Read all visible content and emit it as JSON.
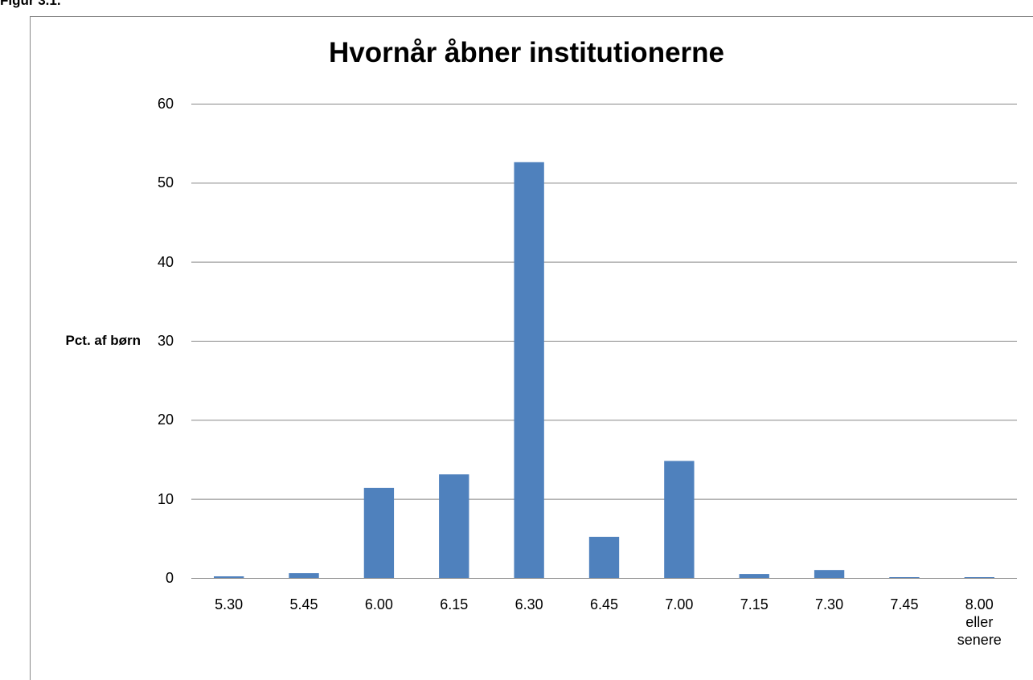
{
  "figure_label": "Figur 3.1.",
  "chart_data": {
    "type": "bar",
    "title": "Hvornår åbner institutionerne",
    "ylabel": "Pct. af børn",
    "categories": [
      "5.30",
      "5.45",
      "6.00",
      "6.15",
      "6.30",
      "6.45",
      "7.00",
      "7.15",
      "7.30",
      "7.45",
      "8.00 eller senere"
    ],
    "values": [
      0.2,
      0.6,
      11.4,
      13.1,
      52.6,
      5.2,
      14.8,
      0.5,
      1.0,
      0.1,
      0.1
    ],
    "color": "#4f81bd",
    "ylim": [
      0,
      60
    ],
    "yticks": [
      0,
      10,
      20,
      30,
      40,
      50,
      60
    ],
    "grid": true
  }
}
